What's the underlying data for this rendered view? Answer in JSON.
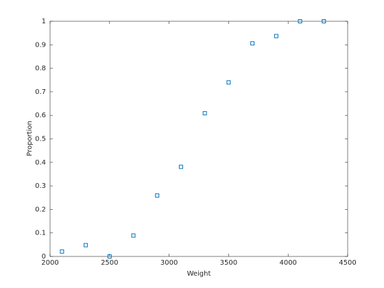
{
  "chart_data": {
    "type": "scatter",
    "xlabel": "Weight",
    "ylabel": "Proportion",
    "series": [
      {
        "color": "#0072bd",
        "x": [
          2100,
          2300,
          2500,
          2700,
          2900,
          3100,
          3300,
          3500,
          3700,
          3900,
          4100,
          4300
        ],
        "values": [
          0.021,
          0.048,
          0,
          0.089,
          0.259,
          0.381,
          0.609,
          0.74,
          0.906,
          0.937,
          1,
          1
        ]
      }
    ],
    "xlim": [
      2000,
      4500
    ],
    "xticks": [
      2000,
      2500,
      3000,
      3500,
      4000,
      4500
    ],
    "ylim": [
      0,
      1
    ],
    "yticks": [
      0,
      0.1,
      0.2,
      0.3,
      0.4,
      0.5,
      0.6,
      0.7,
      0.8,
      0.9,
      1
    ],
    "grid": false
  }
}
